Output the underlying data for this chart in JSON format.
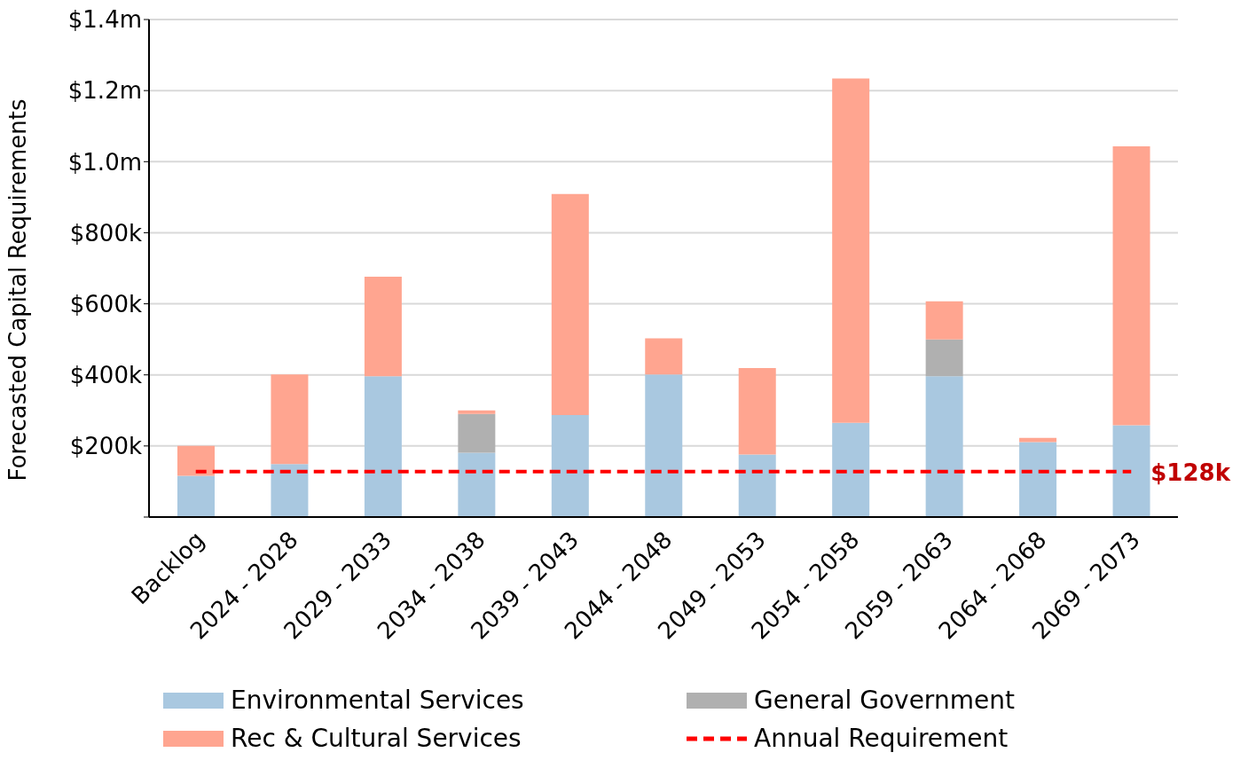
{
  "chart_data": {
    "type": "bar",
    "stacked": true,
    "ylabel": "Forecasted Capital Requirements",
    "categories": [
      "Backlog",
      "2024 - 2028",
      "2029 - 2033",
      "2034 - 2038",
      "2039 - 2043",
      "2044 - 2048",
      "2049 - 2053",
      "2054 - 2058",
      "2059 - 2063",
      "2064 - 2068",
      "2069 - 2073"
    ],
    "ylim": [
      0,
      1400000
    ],
    "yticks": [
      {
        "value": 0,
        "label": null
      },
      {
        "value": 200000,
        "label": "$200k"
      },
      {
        "value": 400000,
        "label": "$400k"
      },
      {
        "value": 600000,
        "label": "$600k"
      },
      {
        "value": 800000,
        "label": "$800k"
      },
      {
        "value": 1000000,
        "label": "$1.0m"
      },
      {
        "value": 1200000,
        "label": "$1.2m"
      },
      {
        "value": 1400000,
        "label": "$1.4m"
      }
    ],
    "grid": "y",
    "legend": "bottom",
    "series": [
      {
        "name": "Environmental Services",
        "color": "#a9c8e0",
        "values": [
          116000,
          149000,
          396000,
          181000,
          287000,
          401000,
          176000,
          265000,
          396000,
          211000,
          258000
        ]
      },
      {
        "name": "General Government",
        "color": "#b0b0b0",
        "values": [
          0,
          0,
          0,
          109000,
          0,
          0,
          0,
          0,
          104000,
          0,
          0
        ]
      },
      {
        "name": "Rec & Cultural Services",
        "color": "#ffa590",
        "values": [
          84000,
          252000,
          280000,
          10000,
          622000,
          102000,
          243000,
          969000,
          107000,
          12000,
          785000
        ]
      },
      {
        "name": "Annual Requirement",
        "type": "line",
        "color": "#ff0000",
        "line_style": "dashed",
        "marker": "none",
        "values": [
          128000,
          128000,
          128000,
          128000,
          128000,
          128000,
          128000,
          128000,
          128000,
          128000,
          128000
        ],
        "value_labels": [
          null,
          null,
          null,
          null,
          null,
          null,
          null,
          null,
          null,
          null,
          "$128k"
        ]
      }
    ]
  }
}
